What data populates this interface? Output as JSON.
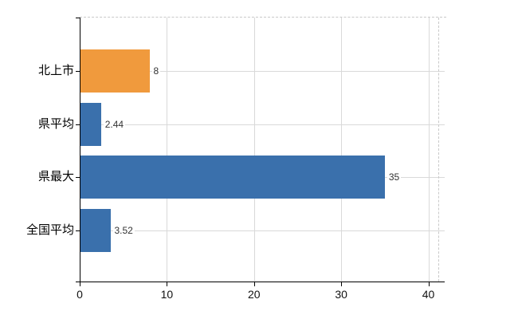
{
  "chart_data": {
    "type": "bar",
    "orientation": "horizontal",
    "title": "",
    "categories": [
      "北上市",
      "県平均",
      "県最大",
      "全国平均"
    ],
    "values": [
      8,
      2.44,
      35,
      3.52
    ],
    "value_labels": [
      "8",
      "2.44",
      "35",
      "3.52"
    ],
    "series": [
      {
        "name": "",
        "values": [
          8,
          2.44,
          35,
          3.52
        ]
      }
    ],
    "bar_colors": [
      "#F09A3D",
      "#3A70AC",
      "#3A70AC",
      "#3A70AC"
    ],
    "xlabel": "",
    "ylabel": "",
    "x_tick_labels": [
      "0",
      "10",
      "20",
      "30",
      "40"
    ],
    "x_tick_values": [
      0,
      10,
      20,
      30,
      40
    ],
    "xlim": [
      0,
      41.1
    ],
    "grid": true,
    "legend_position": "none",
    "plot_border_style": "dashed-top-right",
    "colors": {
      "highlight_bar": "#F09A3D",
      "default_bar": "#3A70AC",
      "gridline": "#D9D9D9",
      "dashed_border": "#C9C9C9",
      "axis_line": "#000000",
      "value_label_text": "#333333",
      "category_label_text": "#000000",
      "tick_label_text": "#111111",
      "background": "#FFFFFF"
    }
  }
}
